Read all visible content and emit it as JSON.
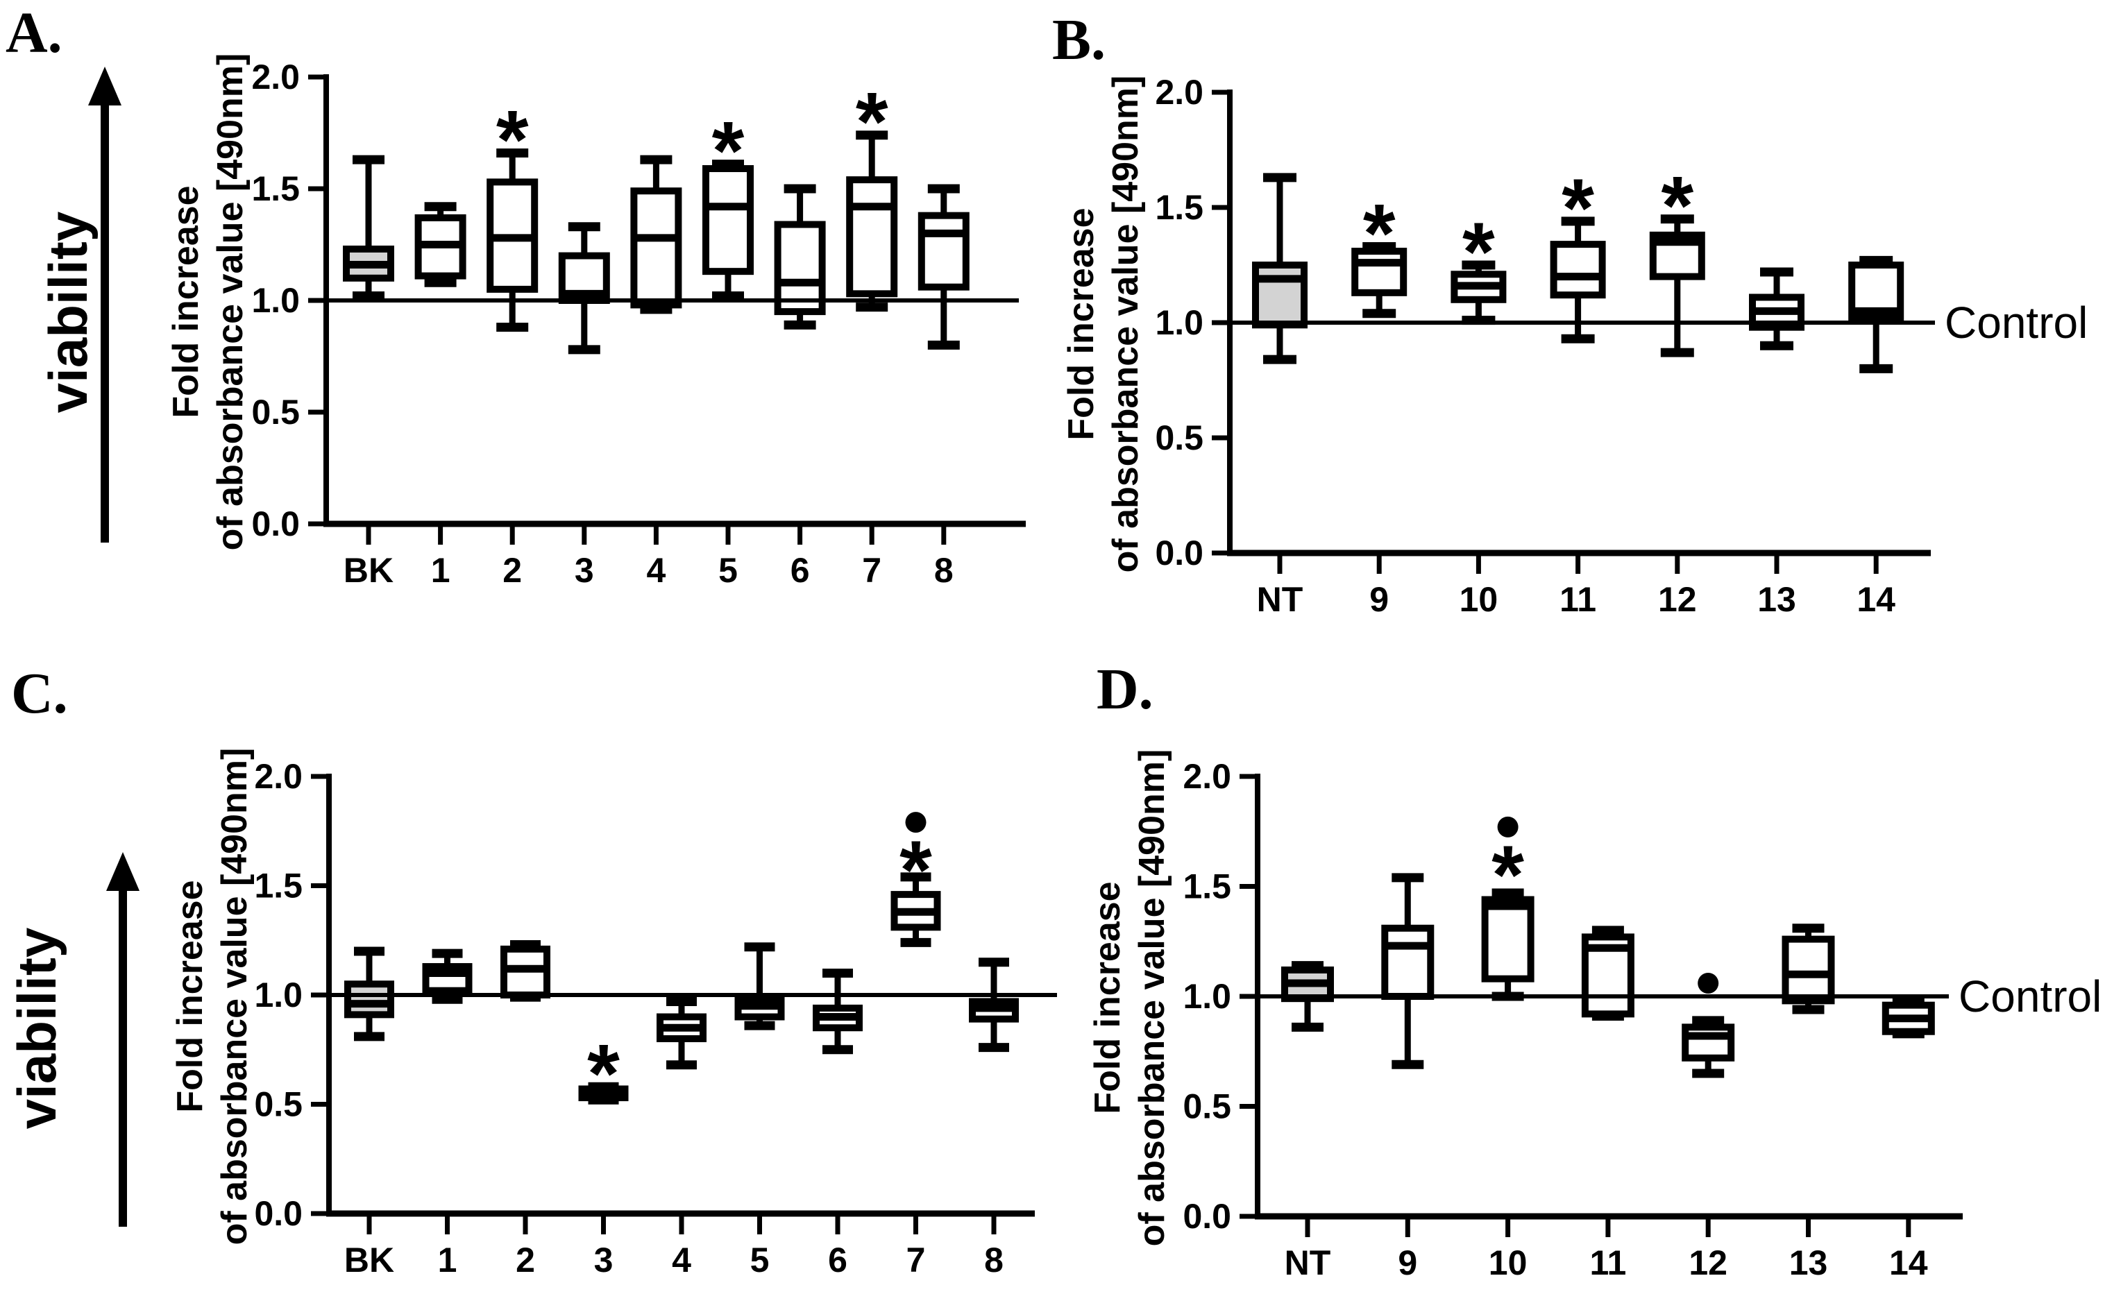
{
  "figure": {
    "background": "#ffffff",
    "ink": "#000000",
    "box_fill": "#ffffff",
    "control_box_fill": "#d3d3d3",
    "row_labels": [
      "viability",
      "viability"
    ],
    "icons": {
      "viability_arrow": "up-arrow"
    },
    "significance_symbols": {
      "star": "*",
      "outlier_dot": "●"
    }
  },
  "chart_data": [
    {
      "panel_label": "A.",
      "type": "box",
      "title": "",
      "ylabel_line1": "Fold increase",
      "ylabel_line2": "of absorbance value [490nm]",
      "ylim": [
        0.0,
        2.0
      ],
      "ytick_labels": [
        "2.0",
        "1.5",
        "1.0",
        "0.5",
        "0.0"
      ],
      "grid": "off",
      "reference_line_y": 1.0,
      "reference_line_label": "",
      "categories": [
        "BK",
        "1",
        "2",
        "3",
        "4",
        "5",
        "6",
        "7",
        "8"
      ],
      "boxes": [
        {
          "label": "BK",
          "whisker_low": 1.02,
          "q1": 1.1,
          "median": 1.16,
          "q3": 1.23,
          "whisker_high": 1.63,
          "fill": "control",
          "significance": "",
          "outlier": null
        },
        {
          "label": "1",
          "whisker_low": 1.08,
          "q1": 1.11,
          "median": 1.25,
          "q3": 1.37,
          "whisker_high": 1.42,
          "fill": "white",
          "significance": "",
          "outlier": null
        },
        {
          "label": "2",
          "whisker_low": 0.88,
          "q1": 1.05,
          "median": 1.28,
          "q3": 1.53,
          "whisker_high": 1.66,
          "fill": "white",
          "significance": "*",
          "outlier": null
        },
        {
          "label": "3",
          "whisker_low": 0.78,
          "q1": 1.0,
          "median": 1.03,
          "q3": 1.2,
          "whisker_high": 1.33,
          "fill": "white",
          "significance": "",
          "outlier": null
        },
        {
          "label": "4",
          "whisker_low": 0.96,
          "q1": 0.98,
          "median": 1.28,
          "q3": 1.49,
          "whisker_high": 1.63,
          "fill": "white",
          "significance": "",
          "outlier": null
        },
        {
          "label": "5",
          "whisker_low": 1.02,
          "q1": 1.13,
          "median": 1.42,
          "q3": 1.59,
          "whisker_high": 1.61,
          "fill": "white",
          "significance": "*",
          "outlier": null
        },
        {
          "label": "6",
          "whisker_low": 0.89,
          "q1": 0.95,
          "median": 1.08,
          "q3": 1.34,
          "whisker_high": 1.5,
          "fill": "white",
          "significance": "",
          "outlier": null
        },
        {
          "label": "7",
          "whisker_low": 0.97,
          "q1": 1.03,
          "median": 1.42,
          "q3": 1.54,
          "whisker_high": 1.74,
          "fill": "white",
          "significance": "*",
          "outlier": null
        },
        {
          "label": "8",
          "whisker_low": 0.8,
          "q1": 1.06,
          "median": 1.3,
          "q3": 1.38,
          "whisker_high": 1.5,
          "fill": "white",
          "significance": "",
          "outlier": null
        }
      ]
    },
    {
      "panel_label": "B.",
      "type": "box",
      "title": "",
      "ylabel_line1": "Fold increase",
      "ylabel_line2": "of absorbance value [490nm]",
      "ylim": [
        0.0,
        2.0
      ],
      "ytick_labels": [
        "2.0",
        "1.5",
        "1.0",
        "0.5",
        "0.0"
      ],
      "grid": "off",
      "reference_line_y": 1.0,
      "reference_line_label": "Control",
      "categories": [
        "NT",
        "9",
        "10",
        "11",
        "12",
        "13",
        "14"
      ],
      "boxes": [
        {
          "label": "NT",
          "whisker_low": 0.84,
          "q1": 0.99,
          "median": 1.19,
          "q3": 1.25,
          "whisker_high": 1.63,
          "fill": "control",
          "significance": "",
          "outlier": null
        },
        {
          "label": "9",
          "whisker_low": 1.04,
          "q1": 1.13,
          "median": 1.26,
          "q3": 1.31,
          "whisker_high": 1.33,
          "fill": "white",
          "significance": "*",
          "outlier": null
        },
        {
          "label": "10",
          "whisker_low": 1.01,
          "q1": 1.1,
          "median": 1.16,
          "q3": 1.21,
          "whisker_high": 1.25,
          "fill": "white",
          "significance": "*",
          "outlier": null
        },
        {
          "label": "11",
          "whisker_low": 0.93,
          "q1": 1.12,
          "median": 1.2,
          "q3": 1.34,
          "whisker_high": 1.44,
          "fill": "white",
          "significance": "*",
          "outlier": null
        },
        {
          "label": "12",
          "whisker_low": 0.87,
          "q1": 1.2,
          "median": 1.35,
          "q3": 1.38,
          "whisker_high": 1.45,
          "fill": "white",
          "significance": "*",
          "outlier": null
        },
        {
          "label": "13",
          "whisker_low": 0.9,
          "q1": 0.98,
          "median": 1.05,
          "q3": 1.11,
          "whisker_high": 1.22,
          "fill": "white",
          "significance": "",
          "outlier": null
        },
        {
          "label": "14",
          "whisker_low": 0.8,
          "q1": 1.02,
          "median": 1.05,
          "q3": 1.25,
          "whisker_high": 1.27,
          "fill": "white",
          "significance": "",
          "outlier": null
        }
      ]
    },
    {
      "panel_label": "C.",
      "type": "box",
      "title": "",
      "ylabel_line1": "Fold increase",
      "ylabel_line2": "of absorbance value [490nm]",
      "ylim": [
        0.0,
        2.0
      ],
      "ytick_labels": [
        "2.0",
        "1.5",
        "1.0",
        "0.5",
        "0.0"
      ],
      "grid": "off",
      "reference_line_y": 1.0,
      "reference_line_label": "",
      "categories": [
        "BK",
        "1",
        "2",
        "3",
        "4",
        "5",
        "6",
        "7",
        "8"
      ],
      "boxes": [
        {
          "label": "BK",
          "whisker_low": 0.81,
          "q1": 0.91,
          "median": 0.96,
          "q3": 1.05,
          "whisker_high": 1.2,
          "fill": "control",
          "significance": "",
          "outlier": null
        },
        {
          "label": "1",
          "whisker_low": 0.98,
          "q1": 1.02,
          "median": 1.1,
          "q3": 1.13,
          "whisker_high": 1.19,
          "fill": "white",
          "significance": "",
          "outlier": null
        },
        {
          "label": "2",
          "whisker_low": 0.99,
          "q1": 1.0,
          "median": 1.12,
          "q3": 1.21,
          "whisker_high": 1.23,
          "fill": "white",
          "significance": "",
          "outlier": null
        },
        {
          "label": "3",
          "whisker_low": 0.52,
          "q1": 0.53,
          "median": 0.55,
          "q3": 0.57,
          "whisker_high": 0.58,
          "fill": "white",
          "significance": "*",
          "outlier": null
        },
        {
          "label": "4",
          "whisker_low": 0.68,
          "q1": 0.8,
          "median": 0.85,
          "q3": 0.9,
          "whisker_high": 0.97,
          "fill": "white",
          "significance": "",
          "outlier": null
        },
        {
          "label": "5",
          "whisker_low": 0.86,
          "q1": 0.9,
          "median": 0.95,
          "q3": 0.98,
          "whisker_high": 1.22,
          "fill": "white",
          "significance": "",
          "outlier": null
        },
        {
          "label": "6",
          "whisker_low": 0.75,
          "q1": 0.85,
          "median": 0.9,
          "q3": 0.94,
          "whisker_high": 1.1,
          "fill": "white",
          "significance": "",
          "outlier": null
        },
        {
          "label": "7",
          "whisker_low": 1.24,
          "q1": 1.31,
          "median": 1.38,
          "q3": 1.46,
          "whisker_high": 1.54,
          "fill": "white",
          "significance": "*",
          "outlier": 1.79
        },
        {
          "label": "8",
          "whisker_low": 0.76,
          "q1": 0.89,
          "median": 0.94,
          "q3": 0.97,
          "whisker_high": 1.15,
          "fill": "white",
          "significance": "",
          "outlier": null
        }
      ]
    },
    {
      "panel_label": "D.",
      "type": "box",
      "title": "",
      "ylabel_line1": "Fold increase",
      "ylabel_line2": "of absorbance value [490nm]",
      "ylim": [
        0.0,
        2.0
      ],
      "ytick_labels": [
        "2.0",
        "1.5",
        "1.0",
        "0.5",
        "0.0"
      ],
      "grid": "off",
      "reference_line_y": 1.0,
      "reference_line_label": "Control",
      "categories": [
        "NT",
        "9",
        "10",
        "11",
        "12",
        "13",
        "14"
      ],
      "boxes": [
        {
          "label": "NT",
          "whisker_low": 0.86,
          "q1": 0.99,
          "median": 1.06,
          "q3": 1.12,
          "whisker_high": 1.14,
          "fill": "control",
          "significance": "",
          "outlier": null
        },
        {
          "label": "9",
          "whisker_low": 0.69,
          "q1": 1.0,
          "median": 1.23,
          "q3": 1.31,
          "whisker_high": 1.54,
          "fill": "white",
          "significance": "",
          "outlier": null
        },
        {
          "label": "10",
          "whisker_low": 1.0,
          "q1": 1.08,
          "median": 1.41,
          "q3": 1.44,
          "whisker_high": 1.47,
          "fill": "white",
          "significance": "*",
          "outlier": 1.77
        },
        {
          "label": "11",
          "whisker_low": 0.91,
          "q1": 0.92,
          "median": 1.22,
          "q3": 1.27,
          "whisker_high": 1.3,
          "fill": "white",
          "significance": "",
          "outlier": null
        },
        {
          "label": "12",
          "whisker_low": 0.65,
          "q1": 0.72,
          "median": 0.82,
          "q3": 0.86,
          "whisker_high": 0.89,
          "fill": "white",
          "significance": "",
          "outlier": 1.06
        },
        {
          "label": "13",
          "whisker_low": 0.94,
          "q1": 0.98,
          "median": 1.1,
          "q3": 1.26,
          "whisker_high": 1.31,
          "fill": "white",
          "significance": "",
          "outlier": null
        },
        {
          "label": "14",
          "whisker_low": 0.83,
          "q1": 0.84,
          "median": 0.9,
          "q3": 0.96,
          "whisker_high": 0.97,
          "fill": "white",
          "significance": "",
          "outlier": null
        }
      ]
    }
  ]
}
